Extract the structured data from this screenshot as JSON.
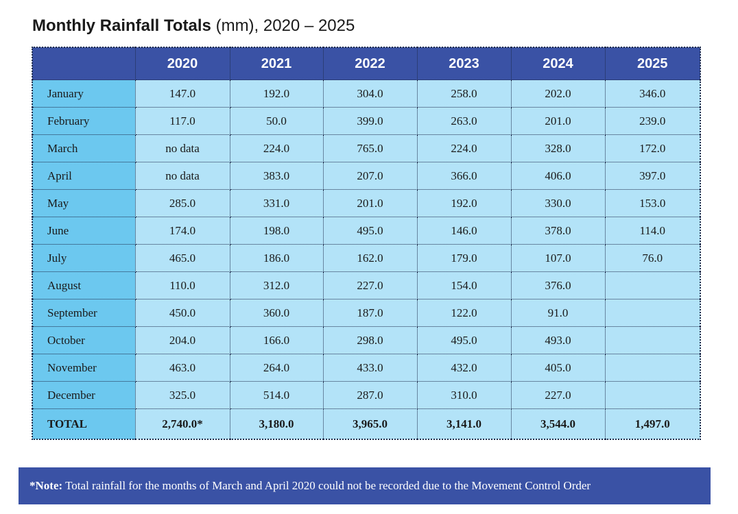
{
  "header": {
    "title": "Monthly Rainfall Totals",
    "subtitle": "(mm), 2020 – 2025"
  },
  "table": {
    "columns": [
      "2020",
      "2021",
      "2022",
      "2023",
      "2024",
      "2025"
    ],
    "rows": [
      [
        "January",
        "147.0",
        "192.0",
        "304.0",
        "258.0",
        "202.0",
        "346.0"
      ],
      [
        "February",
        "117.0",
        "50.0",
        "399.0",
        "263.0",
        "201.0",
        "239.0"
      ],
      [
        "March",
        "no data",
        "224.0",
        "765.0",
        "224.0",
        "328.0",
        "172.0"
      ],
      [
        "April",
        "no data",
        "383.0",
        "207.0",
        "366.0",
        "406.0",
        "397.0"
      ],
      [
        "May",
        "285.0",
        "331.0",
        "201.0",
        "192.0",
        "330.0",
        "153.0"
      ],
      [
        "June",
        "174.0",
        "198.0",
        "495.0",
        "146.0",
        "378.0",
        "114.0"
      ],
      [
        "July",
        "465.0",
        "186.0",
        "162.0",
        "179.0",
        "107.0",
        "76.0"
      ],
      [
        "August",
        "110.0",
        "312.0",
        "227.0",
        "154.0",
        "376.0",
        null
      ],
      [
        "September",
        "450.0",
        "360.0",
        "187.0",
        "122.0",
        "91.0",
        null
      ],
      [
        "October",
        "204.0",
        "166.0",
        "298.0",
        "495.0",
        "493.0",
        null
      ],
      [
        "November",
        "463.0",
        "264.0",
        "433.0",
        "432.0",
        "405.0",
        null
      ],
      [
        "December",
        "325.0",
        "514.0",
        "287.0",
        "310.0",
        "227.0",
        null
      ]
    ],
    "total": [
      "TOTAL",
      "2,740.0*",
      "3,180.0",
      "3,965.0",
      "3,141.0",
      "3,544.0",
      "1,497.0"
    ]
  },
  "note": {
    "label": "*Note:",
    "text": "Total rainfall for the months of March and April 2020 could not be recorded due to the Movement Control Order"
  }
}
